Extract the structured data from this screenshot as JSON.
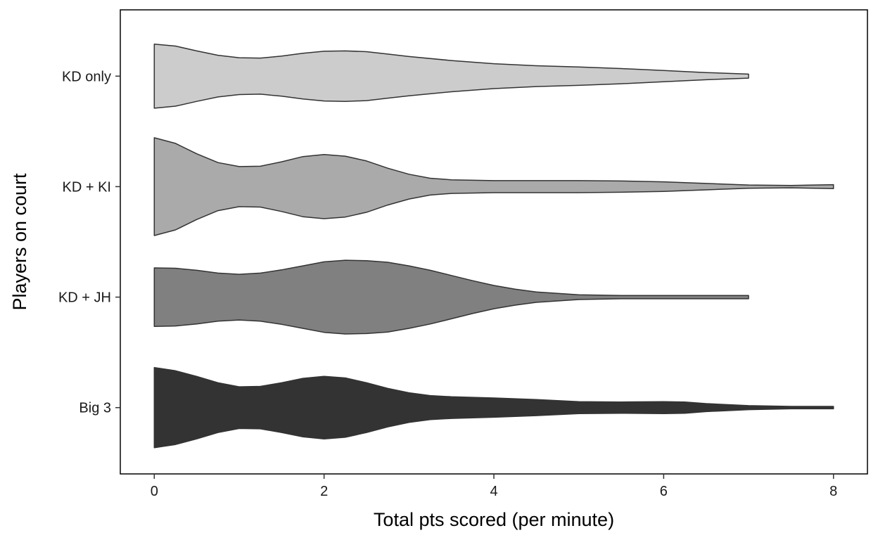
{
  "chart_data": {
    "type": "violin",
    "orientation": "horizontal",
    "xlabel": "Total pts scored (per minute)",
    "ylabel": "Players on court",
    "xlim": [
      -0.4,
      8.4
    ],
    "xticks": [
      0,
      2,
      4,
      6,
      8
    ],
    "grid": false,
    "legend": "none",
    "categories": [
      "Big 3",
      "KD + JH",
      "KD + KI",
      "KD only"
    ],
    "series": [
      {
        "category": "Big 3",
        "fill": "#333333",
        "density": [
          {
            "x": 0.0,
            "w": 1.0
          },
          {
            "x": 0.25,
            "w": 0.92
          },
          {
            "x": 0.5,
            "w": 0.78
          },
          {
            "x": 0.75,
            "w": 0.62
          },
          {
            "x": 1.0,
            "w": 0.52
          },
          {
            "x": 1.25,
            "w": 0.53
          },
          {
            "x": 1.5,
            "w": 0.62
          },
          {
            "x": 1.75,
            "w": 0.73
          },
          {
            "x": 2.0,
            "w": 0.78
          },
          {
            "x": 2.25,
            "w": 0.74
          },
          {
            "x": 2.5,
            "w": 0.62
          },
          {
            "x": 2.75,
            "w": 0.48
          },
          {
            "x": 3.0,
            "w": 0.37
          },
          {
            "x": 3.25,
            "w": 0.3
          },
          {
            "x": 3.5,
            "w": 0.27
          },
          {
            "x": 4.0,
            "w": 0.24
          },
          {
            "x": 4.5,
            "w": 0.2
          },
          {
            "x": 5.0,
            "w": 0.15
          },
          {
            "x": 5.5,
            "w": 0.14
          },
          {
            "x": 6.0,
            "w": 0.15
          },
          {
            "x": 6.25,
            "w": 0.14
          },
          {
            "x": 6.5,
            "w": 0.1
          },
          {
            "x": 7.0,
            "w": 0.05
          },
          {
            "x": 7.5,
            "w": 0.03
          },
          {
            "x": 8.0,
            "w": 0.03
          }
        ]
      },
      {
        "category": "KD + JH",
        "fill": "#808080",
        "density": [
          {
            "x": 0.0,
            "w": 0.73
          },
          {
            "x": 0.25,
            "w": 0.72
          },
          {
            "x": 0.5,
            "w": 0.67
          },
          {
            "x": 0.75,
            "w": 0.6
          },
          {
            "x": 1.0,
            "w": 0.57
          },
          {
            "x": 1.25,
            "w": 0.6
          },
          {
            "x": 1.5,
            "w": 0.68
          },
          {
            "x": 1.75,
            "w": 0.78
          },
          {
            "x": 2.0,
            "w": 0.88
          },
          {
            "x": 2.25,
            "w": 0.92
          },
          {
            "x": 2.5,
            "w": 0.91
          },
          {
            "x": 2.75,
            "w": 0.87
          },
          {
            "x": 3.0,
            "w": 0.78
          },
          {
            "x": 3.25,
            "w": 0.67
          },
          {
            "x": 3.5,
            "w": 0.54
          },
          {
            "x": 3.75,
            "w": 0.41
          },
          {
            "x": 4.0,
            "w": 0.29
          },
          {
            "x": 4.25,
            "w": 0.2
          },
          {
            "x": 4.5,
            "w": 0.13
          },
          {
            "x": 5.0,
            "w": 0.06
          },
          {
            "x": 5.5,
            "w": 0.04
          },
          {
            "x": 6.0,
            "w": 0.04
          },
          {
            "x": 6.5,
            "w": 0.04
          },
          {
            "x": 7.0,
            "w": 0.04
          }
        ]
      },
      {
        "category": "KD + KI",
        "fill": "#aaaaaa",
        "density": [
          {
            "x": 0.0,
            "w": 1.22
          },
          {
            "x": 0.25,
            "w": 1.08
          },
          {
            "x": 0.5,
            "w": 0.82
          },
          {
            "x": 0.75,
            "w": 0.6
          },
          {
            "x": 1.0,
            "w": 0.5
          },
          {
            "x": 1.25,
            "w": 0.51
          },
          {
            "x": 1.5,
            "w": 0.62
          },
          {
            "x": 1.75,
            "w": 0.75
          },
          {
            "x": 2.0,
            "w": 0.8
          },
          {
            "x": 2.25,
            "w": 0.76
          },
          {
            "x": 2.5,
            "w": 0.64
          },
          {
            "x": 2.75,
            "w": 0.46
          },
          {
            "x": 3.0,
            "w": 0.31
          },
          {
            "x": 3.25,
            "w": 0.21
          },
          {
            "x": 3.5,
            "w": 0.17
          },
          {
            "x": 4.0,
            "w": 0.15
          },
          {
            "x": 4.5,
            "w": 0.15
          },
          {
            "x": 5.0,
            "w": 0.15
          },
          {
            "x": 5.5,
            "w": 0.14
          },
          {
            "x": 6.0,
            "w": 0.12
          },
          {
            "x": 6.5,
            "w": 0.08
          },
          {
            "x": 7.0,
            "w": 0.04
          },
          {
            "x": 7.5,
            "w": 0.03
          },
          {
            "x": 8.0,
            "w": 0.05
          }
        ]
      },
      {
        "category": "KD only",
        "fill": "#cccccc",
        "density": [
          {
            "x": 0.0,
            "w": 0.8
          },
          {
            "x": 0.25,
            "w": 0.75
          },
          {
            "x": 0.5,
            "w": 0.63
          },
          {
            "x": 0.75,
            "w": 0.52
          },
          {
            "x": 1.0,
            "w": 0.46
          },
          {
            "x": 1.25,
            "w": 0.45
          },
          {
            "x": 1.5,
            "w": 0.5
          },
          {
            "x": 1.75,
            "w": 0.57
          },
          {
            "x": 2.0,
            "w": 0.62
          },
          {
            "x": 2.25,
            "w": 0.63
          },
          {
            "x": 2.5,
            "w": 0.61
          },
          {
            "x": 2.75,
            "w": 0.55
          },
          {
            "x": 3.0,
            "w": 0.49
          },
          {
            "x": 3.5,
            "w": 0.39
          },
          {
            "x": 4.0,
            "w": 0.31
          },
          {
            "x": 4.5,
            "w": 0.26
          },
          {
            "x": 5.0,
            "w": 0.23
          },
          {
            "x": 5.5,
            "w": 0.19
          },
          {
            "x": 6.0,
            "w": 0.14
          },
          {
            "x": 6.5,
            "w": 0.09
          },
          {
            "x": 7.0,
            "w": 0.05
          }
        ]
      }
    ]
  }
}
